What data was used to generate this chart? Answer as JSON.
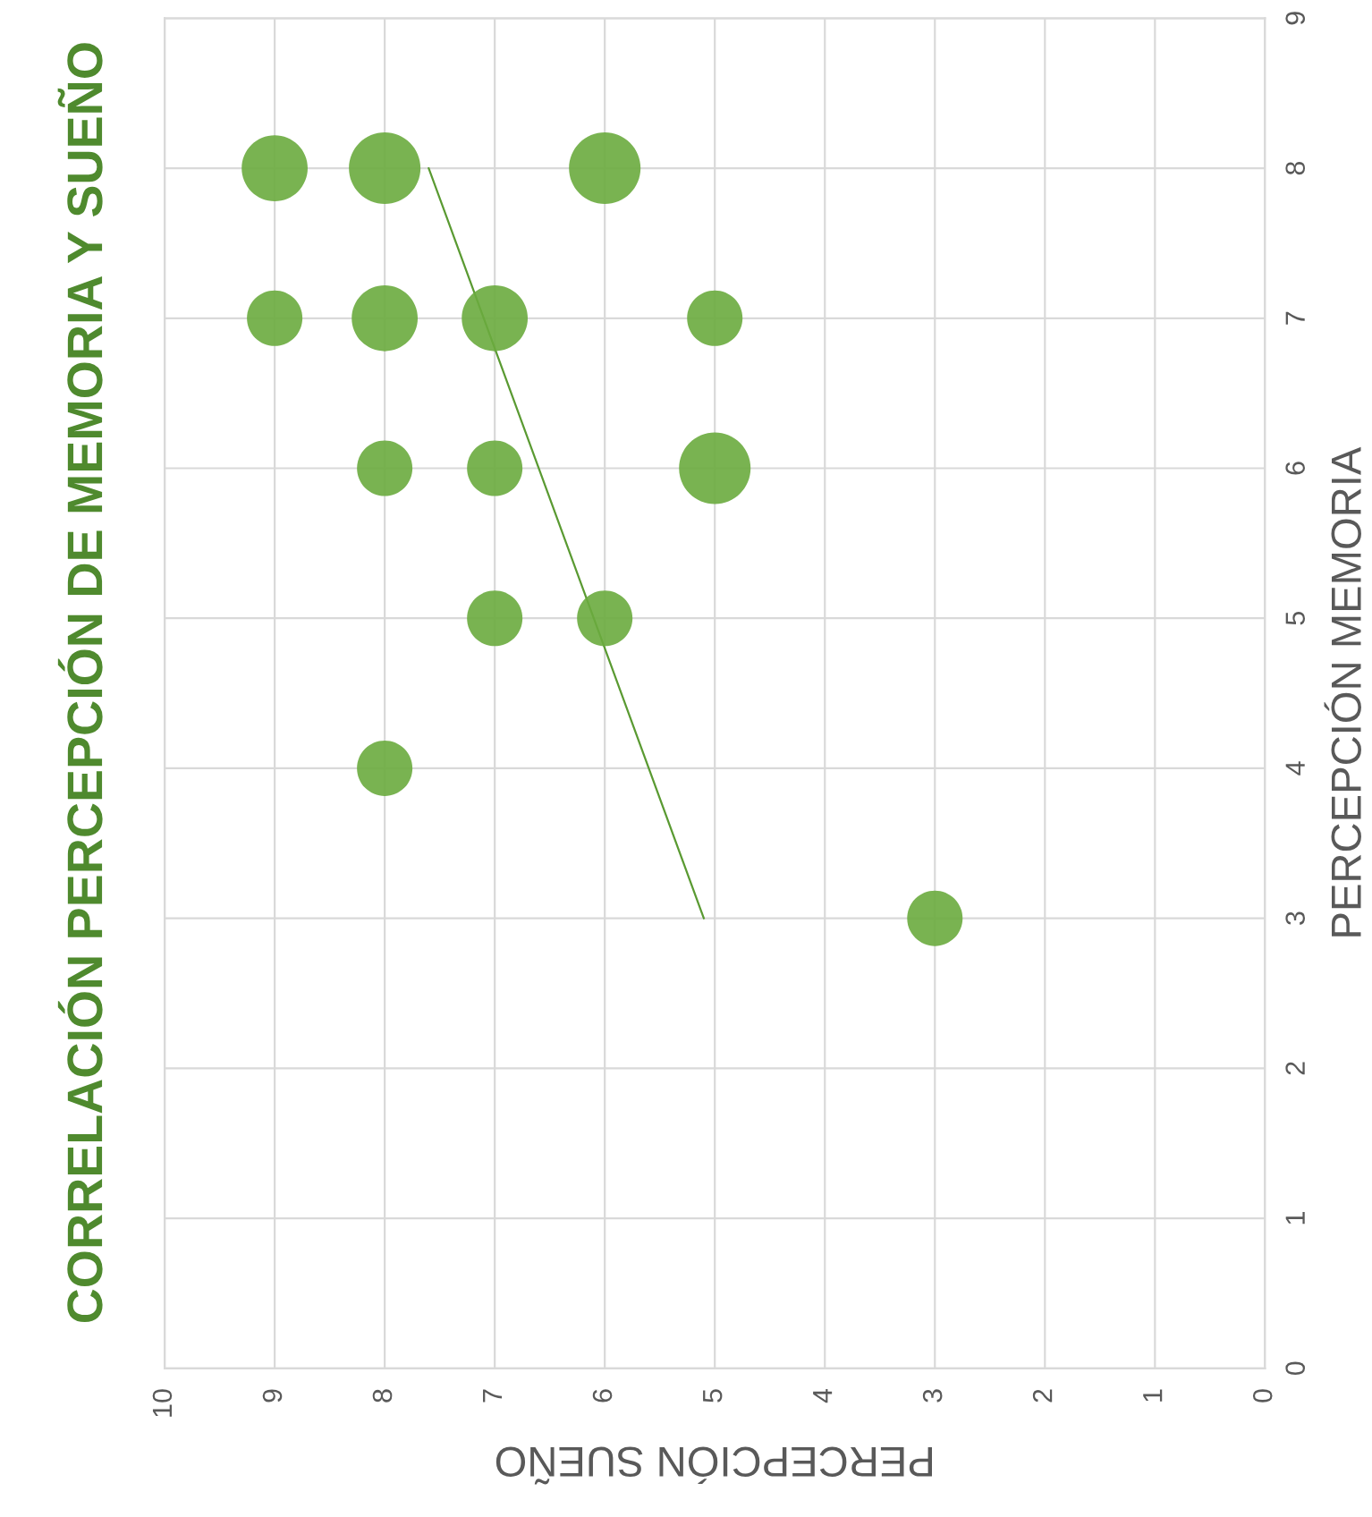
{
  "chart_data": {
    "type": "bubble",
    "title": "CORRELACIÓN PERCEPCIÓN DE MEMORIA Y SUEÑO",
    "xlabel": "PERCEPCIÓN SUEÑO",
    "ylabel": "PERCEPCIÓN MEMORIA",
    "xlim": [
      10,
      0
    ],
    "xticks": [
      0,
      1,
      2,
      3,
      4,
      5,
      6,
      7,
      8,
      9,
      10
    ],
    "ylim": [
      0,
      9
    ],
    "yticks": [
      0,
      1,
      2,
      3,
      4,
      5,
      6,
      7,
      8,
      9
    ],
    "grid": true,
    "legend": false,
    "series": [
      {
        "marker": "circle",
        "color": "#6aab3e",
        "x": [
          9,
          8,
          6,
          9,
          8,
          7,
          5,
          8,
          7,
          5,
          7,
          6,
          8,
          3
        ],
        "values": [
          8,
          8,
          8,
          7,
          7,
          7,
          7,
          6,
          6,
          6,
          5,
          5,
          4,
          3
        ],
        "sizes": [
          0.85,
          1,
          1,
          0.6,
          0.85,
          0.85,
          0.6,
          0.6,
          0.6,
          1,
          0.6,
          0.6,
          0.6,
          0.6
        ]
      },
      {
        "type": "line",
        "color": "#5a9a32",
        "x": [
          5.1,
          7.6
        ],
        "values": [
          3,
          8
        ]
      }
    ]
  }
}
